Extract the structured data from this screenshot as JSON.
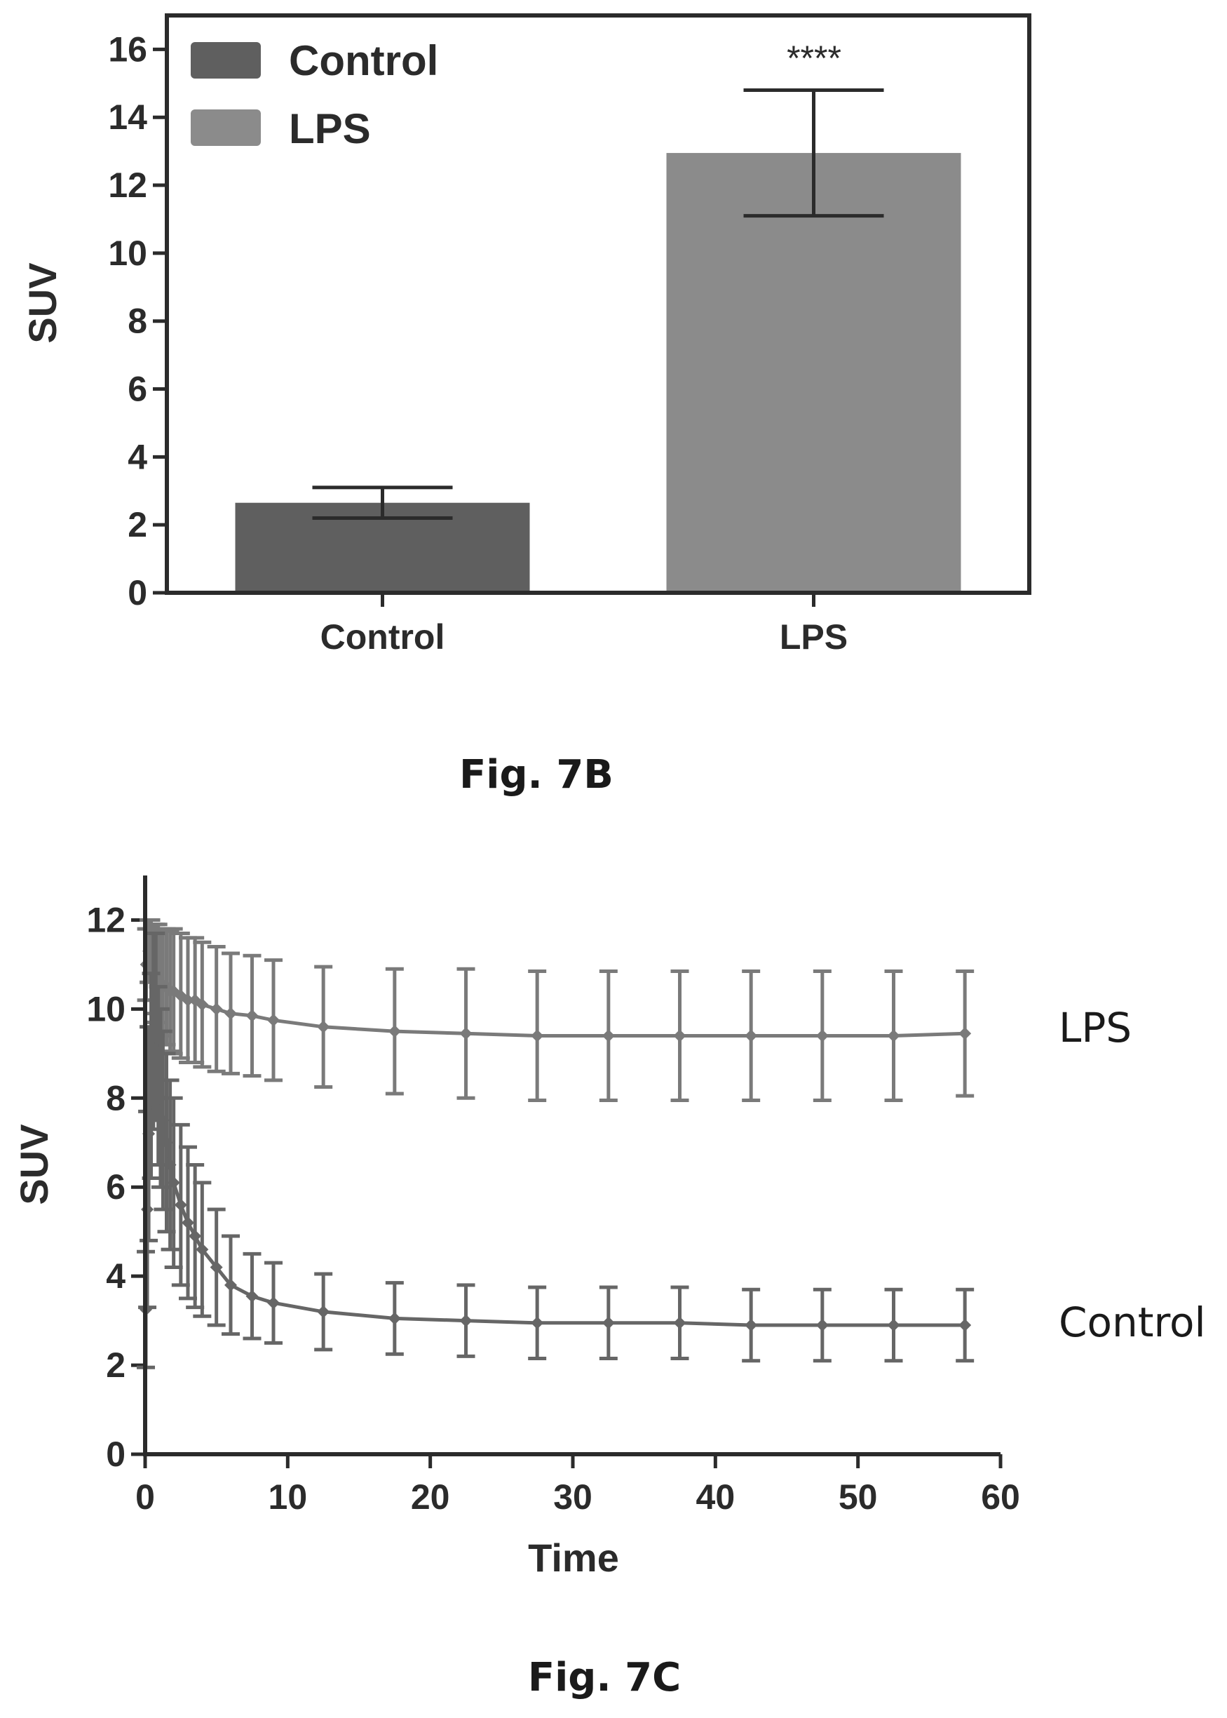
{
  "chart_data": [
    {
      "type": "bar",
      "categories": [
        "Control",
        "LPS"
      ],
      "values": [
        2.65,
        12.95
      ],
      "errors": [
        0.45,
        1.85
      ],
      "ylabel": "SUV",
      "ylim": [
        0,
        17
      ],
      "yticks": [
        0,
        2,
        4,
        6,
        8,
        10,
        12,
        14,
        16
      ],
      "legend": [
        "Control",
        "LPS"
      ],
      "legend_position": "top-left",
      "annotation": "****",
      "caption": "Fig. 7B",
      "colors": {
        "Control": "#5f5f5f",
        "LPS": "#8b8b8b"
      }
    },
    {
      "type": "line",
      "xlabel": "Time",
      "ylabel": "SUV",
      "xlim": [
        0,
        60
      ],
      "ylim": [
        0,
        13
      ],
      "xticks": [
        0,
        10,
        20,
        30,
        40,
        50,
        60
      ],
      "yticks": [
        0,
        2,
        4,
        6,
        8,
        10,
        12
      ],
      "caption": "Fig. 7C",
      "series": [
        {
          "name": "LPS",
          "color": "#7a7a7a",
          "x": [
            0.08,
            0.25,
            0.42,
            0.58,
            0.75,
            0.92,
            1.08,
            1.25,
            1.5,
            1.75,
            2.0,
            2.5,
            3.0,
            3.5,
            4.0,
            5.0,
            6.0,
            7.5,
            9.0,
            12.5,
            17.5,
            22.5,
            27.5,
            32.5,
            37.5,
            42.5,
            47.5,
            52.5,
            57.5
          ],
          "y": [
            11.0,
            11.3,
            11.1,
            10.9,
            10.8,
            10.7,
            10.6,
            10.5,
            10.5,
            10.4,
            10.4,
            10.3,
            10.2,
            10.2,
            10.1,
            10.0,
            9.9,
            9.85,
            9.75,
            9.6,
            9.5,
            9.45,
            9.4,
            9.4,
            9.4,
            9.4,
            9.4,
            9.4,
            9.45
          ],
          "err": [
            0.8,
            0.7,
            0.9,
            1.0,
            1.1,
            1.2,
            1.2,
            1.3,
            1.3,
            1.35,
            1.4,
            1.4,
            1.4,
            1.4,
            1.4,
            1.4,
            1.35,
            1.35,
            1.35,
            1.35,
            1.4,
            1.45,
            1.45,
            1.45,
            1.45,
            1.45,
            1.45,
            1.45,
            1.4
          ]
        },
        {
          "name": "Control",
          "color": "#666666",
          "x": [
            0.05,
            0.15,
            0.25,
            0.42,
            0.58,
            0.75,
            0.92,
            1.08,
            1.25,
            1.5,
            1.75,
            2.0,
            2.5,
            3.0,
            3.5,
            4.0,
            5.0,
            6.0,
            7.5,
            9.0,
            12.5,
            17.5,
            22.5,
            27.5,
            32.5,
            37.5,
            42.5,
            47.5,
            52.5,
            57.5
          ],
          "y": [
            3.25,
            5.5,
            7.2,
            8.5,
            9.5,
            9.6,
            8.5,
            8.0,
            7.5,
            7.0,
            6.5,
            6.1,
            5.6,
            5.2,
            4.9,
            4.6,
            4.2,
            3.8,
            3.55,
            3.4,
            3.2,
            3.05,
            3.0,
            2.95,
            2.95,
            2.95,
            2.9,
            2.9,
            2.9,
            2.9
          ],
          "err": [
            1.3,
            2.2,
            2.4,
            2.3,
            2.2,
            2.1,
            2.0,
            2.0,
            2.0,
            2.0,
            1.9,
            1.9,
            1.8,
            1.7,
            1.6,
            1.5,
            1.3,
            1.1,
            0.95,
            0.9,
            0.85,
            0.8,
            0.8,
            0.8,
            0.8,
            0.8,
            0.8,
            0.8,
            0.8,
            0.8
          ]
        }
      ]
    }
  ]
}
